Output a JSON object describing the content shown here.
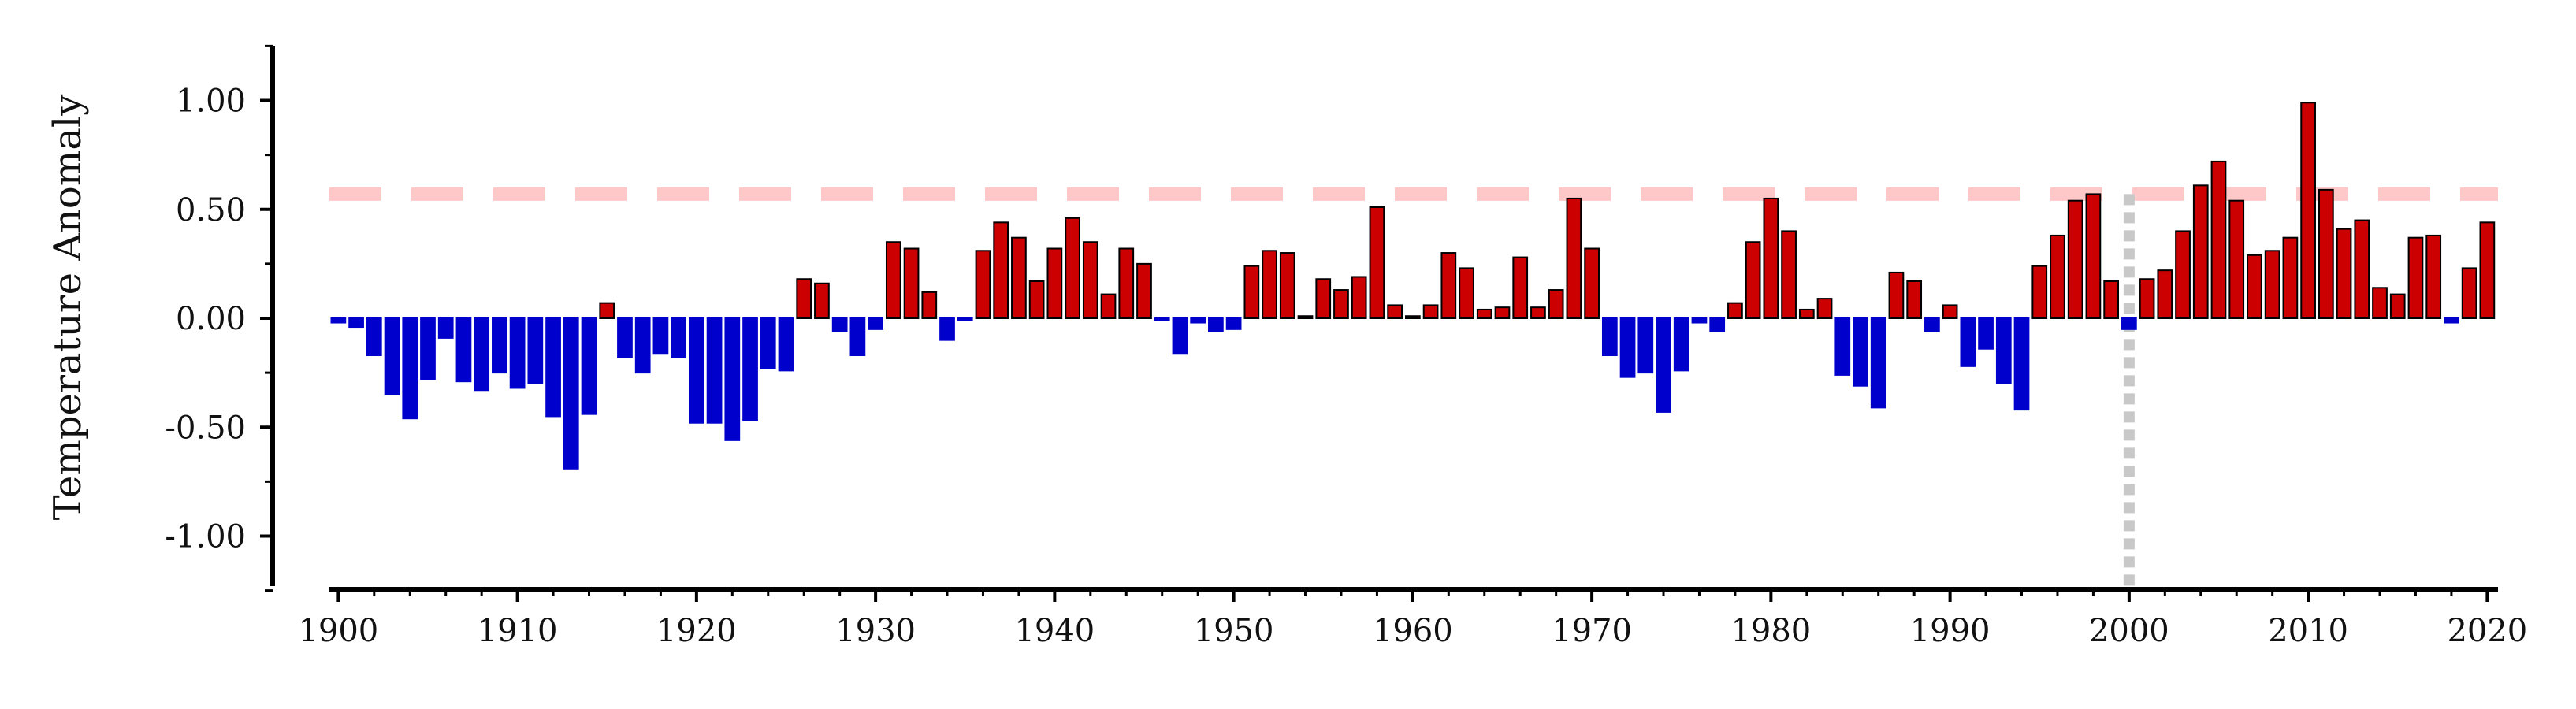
{
  "chart_data": {
    "type": "bar",
    "ylabel": "Temperature Anomaly",
    "xlabel": "",
    "title": "",
    "ylim": [
      -1.25,
      1.25
    ],
    "xlim": [
      1899.5,
      2020.6
    ],
    "x_ticks": [
      "1900",
      "1910",
      "1920",
      "1930",
      "1940",
      "1950",
      "1960",
      "1970",
      "1980",
      "1990",
      "2000",
      "2010",
      "2020"
    ],
    "y_ticks": [
      "1.00",
      "0.50",
      "0.00",
      "-0.50",
      "-1.00"
    ],
    "x_tick_values": [
      1900,
      1910,
      1920,
      1930,
      1940,
      1950,
      1960,
      1970,
      1980,
      1990,
      2000,
      2010,
      2020
    ],
    "y_tick_values": [
      1.0,
      0.5,
      0.0,
      -0.5,
      -1.0
    ],
    "years": [
      1900,
      1901,
      1902,
      1903,
      1904,
      1905,
      1906,
      1907,
      1908,
      1909,
      1910,
      1911,
      1912,
      1913,
      1914,
      1915,
      1916,
      1917,
      1918,
      1919,
      1920,
      1921,
      1922,
      1923,
      1924,
      1925,
      1926,
      1927,
      1928,
      1929,
      1930,
      1931,
      1932,
      1933,
      1934,
      1935,
      1936,
      1937,
      1938,
      1939,
      1940,
      1941,
      1942,
      1943,
      1944,
      1945,
      1946,
      1947,
      1948,
      1949,
      1950,
      1951,
      1952,
      1953,
      1954,
      1955,
      1956,
      1957,
      1958,
      1959,
      1960,
      1961,
      1962,
      1963,
      1964,
      1965,
      1966,
      1967,
      1968,
      1969,
      1970,
      1971,
      1972,
      1973,
      1974,
      1975,
      1976,
      1977,
      1978,
      1979,
      1980,
      1981,
      1982,
      1983,
      1984,
      1985,
      1986,
      1987,
      1988,
      1989,
      1990,
      1991,
      1992,
      1993,
      1994,
      1995,
      1996,
      1997,
      1998,
      1999,
      2000,
      2001,
      2002,
      2003,
      2004,
      2005,
      2006,
      2007,
      2008,
      2009,
      2010,
      2011,
      2012,
      2013,
      2014,
      2015,
      2016,
      2017,
      2018,
      2019,
      2020
    ],
    "values": [
      -0.02,
      -0.04,
      -0.17,
      -0.35,
      -0.46,
      -0.28,
      -0.09,
      -0.29,
      -0.33,
      -0.25,
      -0.32,
      -0.3,
      -0.45,
      -0.69,
      -0.44,
      0.07,
      -0.18,
      -0.25,
      -0.16,
      -0.18,
      -0.48,
      -0.48,
      -0.56,
      -0.47,
      -0.23,
      -0.24,
      0.18,
      0.16,
      -0.06,
      -0.17,
      -0.05,
      0.35,
      0.32,
      0.12,
      -0.1,
      -0.01,
      0.31,
      0.44,
      0.37,
      0.17,
      0.32,
      0.46,
      0.35,
      0.11,
      0.32,
      0.25,
      -0.01,
      -0.16,
      -0.02,
      -0.06,
      -0.05,
      0.24,
      0.31,
      0.3,
      0.01,
      0.18,
      0.13,
      0.19,
      0.51,
      0.06,
      0.01,
      0.06,
      0.3,
      0.23,
      0.04,
      0.05,
      0.28,
      0.05,
      0.13,
      0.55,
      0.32,
      -0.17,
      -0.27,
      -0.25,
      -0.43,
      -0.24,
      -0.02,
      -0.06,
      0.07,
      0.35,
      0.55,
      0.4,
      0.04,
      0.09,
      -0.26,
      -0.31,
      -0.41,
      0.21,
      0.17,
      -0.06,
      0.06,
      -0.22,
      -0.14,
      -0.3,
      -0.42,
      0.24,
      0.38,
      0.54,
      0.57,
      0.17,
      -0.05,
      0.18,
      0.22,
      0.4,
      0.61,
      0.72,
      0.54,
      0.29,
      0.31,
      0.37,
      0.99,
      0.59,
      0.41,
      0.45,
      0.14,
      0.11,
      0.37,
      0.38,
      -0.02,
      0.23,
      0.44
    ],
    "reference_line": {
      "y": 0.57,
      "style": "dashed",
      "color": "#ffc8c8"
    },
    "reference_vline": {
      "x": 2000,
      "style": "dotted",
      "color": "#c8c8c8"
    },
    "colors": {
      "positive": "#cc0000",
      "negative": "#0000cc",
      "bar_edge": "#000000",
      "axis": "#000000"
    },
    "grid": false,
    "legend": "none"
  }
}
